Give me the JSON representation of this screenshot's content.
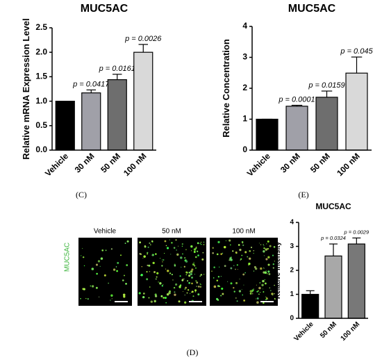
{
  "chart_data": [
    {
      "type": "bar",
      "title": "MUC5AC",
      "ylabel": "Relative mRNA Expression Level",
      "categories": [
        "Vehicle",
        "30 nM",
        "50 nM",
        "100 nM"
      ],
      "values": [
        1.0,
        1.17,
        1.44,
        2.0
      ],
      "errors": [
        0,
        0.06,
        0.11,
        0.16
      ],
      "annotations": [
        null,
        "p = 0.0417",
        "p = 0.0161",
        "p = 0.0026"
      ],
      "colors": [
        "#000000",
        "#a0a0a8",
        "#6e6e6e",
        "#d9d9d9"
      ],
      "ylim": [
        0,
        2.5
      ],
      "yticks": [
        {
          "value": 0,
          "label": "0.0"
        },
        0.5,
        {
          "value": 1,
          "label": "1.0"
        },
        1.5,
        {
          "value": 2,
          "label": "2.0"
        },
        2.5
      ]
    },
    {
      "type": "bar",
      "title": "MUC5AC",
      "ylabel": "Relative Concentration",
      "categories": [
        "Vehicle",
        "30 nM",
        "50 nM",
        "100 nM"
      ],
      "values": [
        1.0,
        1.42,
        1.71,
        2.49
      ],
      "errors": [
        0,
        0.03,
        0.2,
        0.52
      ],
      "annotations": [
        null,
        "p = 0.0001",
        "p = 0.0159",
        "p = 0.045"
      ],
      "colors": [
        "#000000",
        "#a0a0a8",
        "#6e6e6e",
        "#d9d9d9"
      ],
      "ylim": [
        0,
        4
      ],
      "yticks": [
        0,
        1,
        2,
        3,
        4
      ]
    },
    {
      "type": "bar",
      "title": "MUC5AC",
      "ylabel": "Relative Intensity",
      "categories": [
        "Vehicle",
        "50 nM",
        "100 nM"
      ],
      "values": [
        1.0,
        2.6,
        3.1
      ],
      "errors": [
        0.15,
        0.5,
        0.25
      ],
      "annotations": [
        null,
        "p = 0.0324",
        "p = 0.0029"
      ],
      "colors": [
        "#000000",
        "#a8a8a8",
        "#787878"
      ],
      "ylim": [
        0,
        4
      ],
      "yticks": [
        0,
        1,
        2,
        3,
        4
      ]
    }
  ],
  "panel_labels": [
    "(C)",
    "(E)",
    "(D)"
  ],
  "images": {
    "stain": "MUC5AC",
    "labels": [
      "Vehicle",
      "50 nM",
      "100 nM"
    ]
  }
}
